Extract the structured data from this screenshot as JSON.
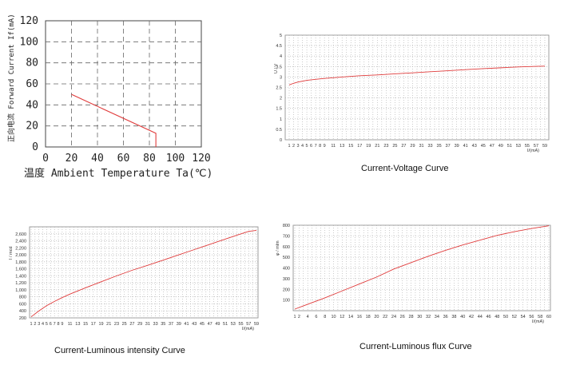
{
  "chart_data": [
    {
      "type": "line",
      "xlabel": "温度 Ambient Temperature Ta(℃)",
      "ylabel": "正向电流 Forward Current If(mA)",
      "xlim": [
        0,
        120
      ],
      "ylim": [
        0,
        120
      ],
      "xticks": [
        "0",
        "20",
        "40",
        "60",
        "80",
        "100",
        "120"
      ],
      "yticks": [
        "0",
        "20",
        "40",
        "60",
        "80",
        "100",
        "120"
      ],
      "grid": true,
      "series": [
        {
          "x": [
            20,
            85,
            85
          ],
          "y": [
            50,
            13,
            0
          ]
        }
      ],
      "color": "#e03c3c"
    },
    {
      "type": "line",
      "caption": "Current-Voltage Curve",
      "xlabel": "I/(mA)",
      "ylabel": "U / V",
      "ylim": [
        0,
        5
      ],
      "yticks": [
        "0",
        "0.5",
        "1",
        "1.5",
        "2",
        "2.5",
        "3",
        "3.5",
        "4",
        "4.5",
        "5"
      ],
      "xticks": [
        "1",
        "2",
        "3",
        "4",
        "5",
        "6",
        "7",
        "8",
        "9",
        "11",
        "13",
        "15",
        "17",
        "19",
        "21",
        "23",
        "25",
        "27",
        "29",
        "31",
        "33",
        "35",
        "37",
        "39",
        "41",
        "43",
        "45",
        "47",
        "49",
        "51",
        "53",
        "55",
        "57",
        "59"
      ],
      "grid": true,
      "series": [
        {
          "x": [
            1,
            2,
            3,
            5,
            7,
            9,
            13,
            17,
            21,
            25,
            29,
            33,
            37,
            41,
            45,
            49,
            53,
            57,
            59
          ],
          "y": [
            2.62,
            2.7,
            2.76,
            2.84,
            2.89,
            2.93,
            3.0,
            3.06,
            3.1,
            3.15,
            3.2,
            3.25,
            3.3,
            3.35,
            3.4,
            3.44,
            3.48,
            3.51,
            3.52
          ]
        }
      ],
      "color": "#e03c3c"
    },
    {
      "type": "line",
      "caption": "Current-Luminous intensity Curve",
      "xlabel": "I/(mA)",
      "ylabel": "I / mcd",
      "ylim": [
        200,
        2800
      ],
      "yticks": [
        "200",
        "400",
        "600",
        "800",
        "1,000",
        "1,200",
        "1,400",
        "1,600",
        "1,800",
        "2,000",
        "2,200",
        "2,400",
        "2,600"
      ],
      "xticks": [
        "1",
        "2",
        "3",
        "4",
        "5",
        "6",
        "7",
        "8",
        "9",
        "11",
        "13",
        "15",
        "17",
        "19",
        "21",
        "23",
        "25",
        "27",
        "29",
        "31",
        "33",
        "35",
        "37",
        "39",
        "41",
        "43",
        "45",
        "47",
        "49",
        "51",
        "53",
        "55",
        "57",
        "59"
      ],
      "grid": true,
      "series": [
        {
          "x": [
            1,
            3,
            5,
            7,
            9,
            11,
            15,
            19,
            23,
            27,
            31,
            35,
            39,
            43,
            47,
            51,
            55,
            57,
            59
          ],
          "y": [
            230,
            400,
            550,
            670,
            780,
            880,
            1060,
            1230,
            1400,
            1560,
            1700,
            1850,
            2000,
            2150,
            2300,
            2450,
            2600,
            2670,
            2700
          ]
        }
      ],
      "color": "#e03c3c"
    },
    {
      "type": "line",
      "caption": "Current-Luminous flux Curve",
      "xlabel": "I/(mA)",
      "ylabel": "φ / mlm",
      "ylim": [
        0,
        800
      ],
      "yticks": [
        "100",
        "200",
        "300",
        "400",
        "500",
        "600",
        "700",
        "800"
      ],
      "xticks": [
        "1",
        "2",
        "4",
        "6",
        "8",
        "10",
        "12",
        "14",
        "16",
        "18",
        "20",
        "22",
        "24",
        "26",
        "28",
        "30",
        "32",
        "34",
        "36",
        "38",
        "40",
        "42",
        "44",
        "46",
        "48",
        "50",
        "52",
        "54",
        "56",
        "58",
        "60"
      ],
      "grid": true,
      "series": [
        {
          "x": [
            1,
            4,
            8,
            12,
            16,
            20,
            24,
            28,
            32,
            36,
            40,
            44,
            48,
            52,
            56,
            60
          ],
          "y": [
            15,
            60,
            120,
            185,
            250,
            315,
            390,
            450,
            510,
            565,
            615,
            660,
            705,
            740,
            770,
            795
          ]
        }
      ],
      "color": "#e03c3c"
    }
  ]
}
